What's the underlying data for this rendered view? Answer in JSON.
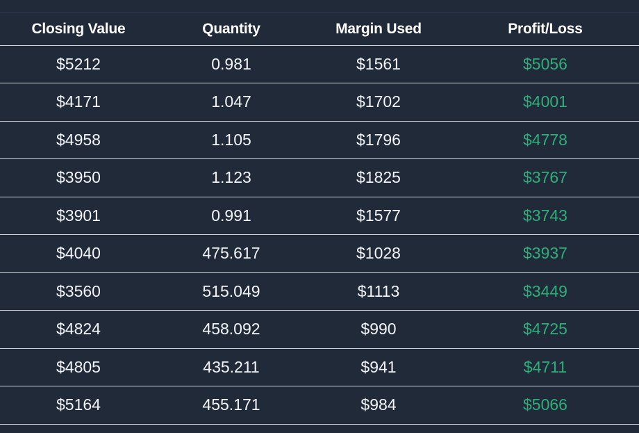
{
  "table": {
    "columns": [
      "Closing Value",
      "Quantity",
      "Margin Used",
      "Profit/Loss"
    ],
    "rows": [
      [
        "$5212",
        "0.981",
        "$1561",
        "$5056"
      ],
      [
        "$4171",
        "1.047",
        "$1702",
        "$4001"
      ],
      [
        "$4958",
        "1.105",
        "$1796",
        "$4778"
      ],
      [
        "$3950",
        "1.123",
        "$1825",
        "$3767"
      ],
      [
        "$3901",
        "0.991",
        "$1577",
        "$3743"
      ],
      [
        "$4040",
        "475.617",
        "$1028",
        "$3937"
      ],
      [
        "$3560",
        "515.049",
        "$1113",
        "$3449"
      ],
      [
        "$4824",
        "458.092",
        "$990",
        "$4725"
      ],
      [
        "$4805",
        "435.211",
        "$941",
        "$4711"
      ],
      [
        "$5164",
        "455.171",
        "$984",
        "$5066"
      ]
    ]
  },
  "colors": {
    "background": "#212a38",
    "row_separator": "#d2d6dc",
    "header_text": "#ffffff",
    "cell_text": "#f2f4f7",
    "profit_positive": "#2fae7a"
  }
}
